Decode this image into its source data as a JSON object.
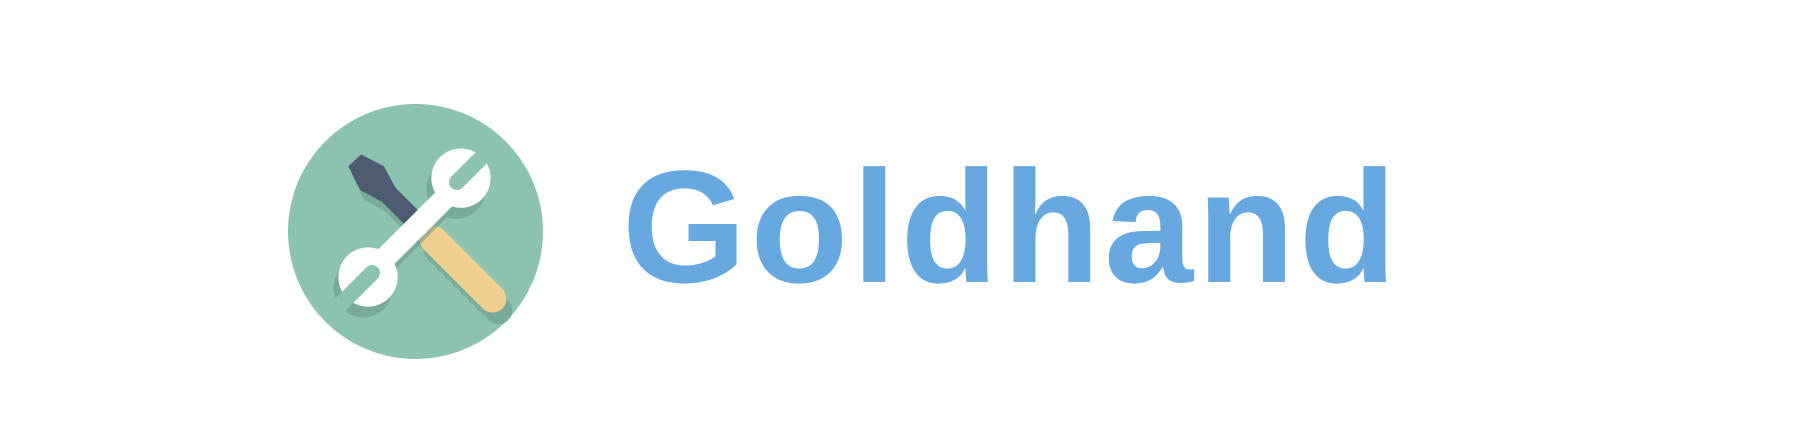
{
  "brand": {
    "name": "Goldhand",
    "text_color": "#66a8df"
  },
  "logo": {
    "icon": "wrench-and-screwdriver-icon",
    "circle_color": "#8bc2b0",
    "screwdriver_blade_color": "#4f5b70",
    "screwdriver_handle_color": "#efcf90",
    "wrench_color": "#ffffff",
    "shadow_color": "#6a9a89"
  }
}
